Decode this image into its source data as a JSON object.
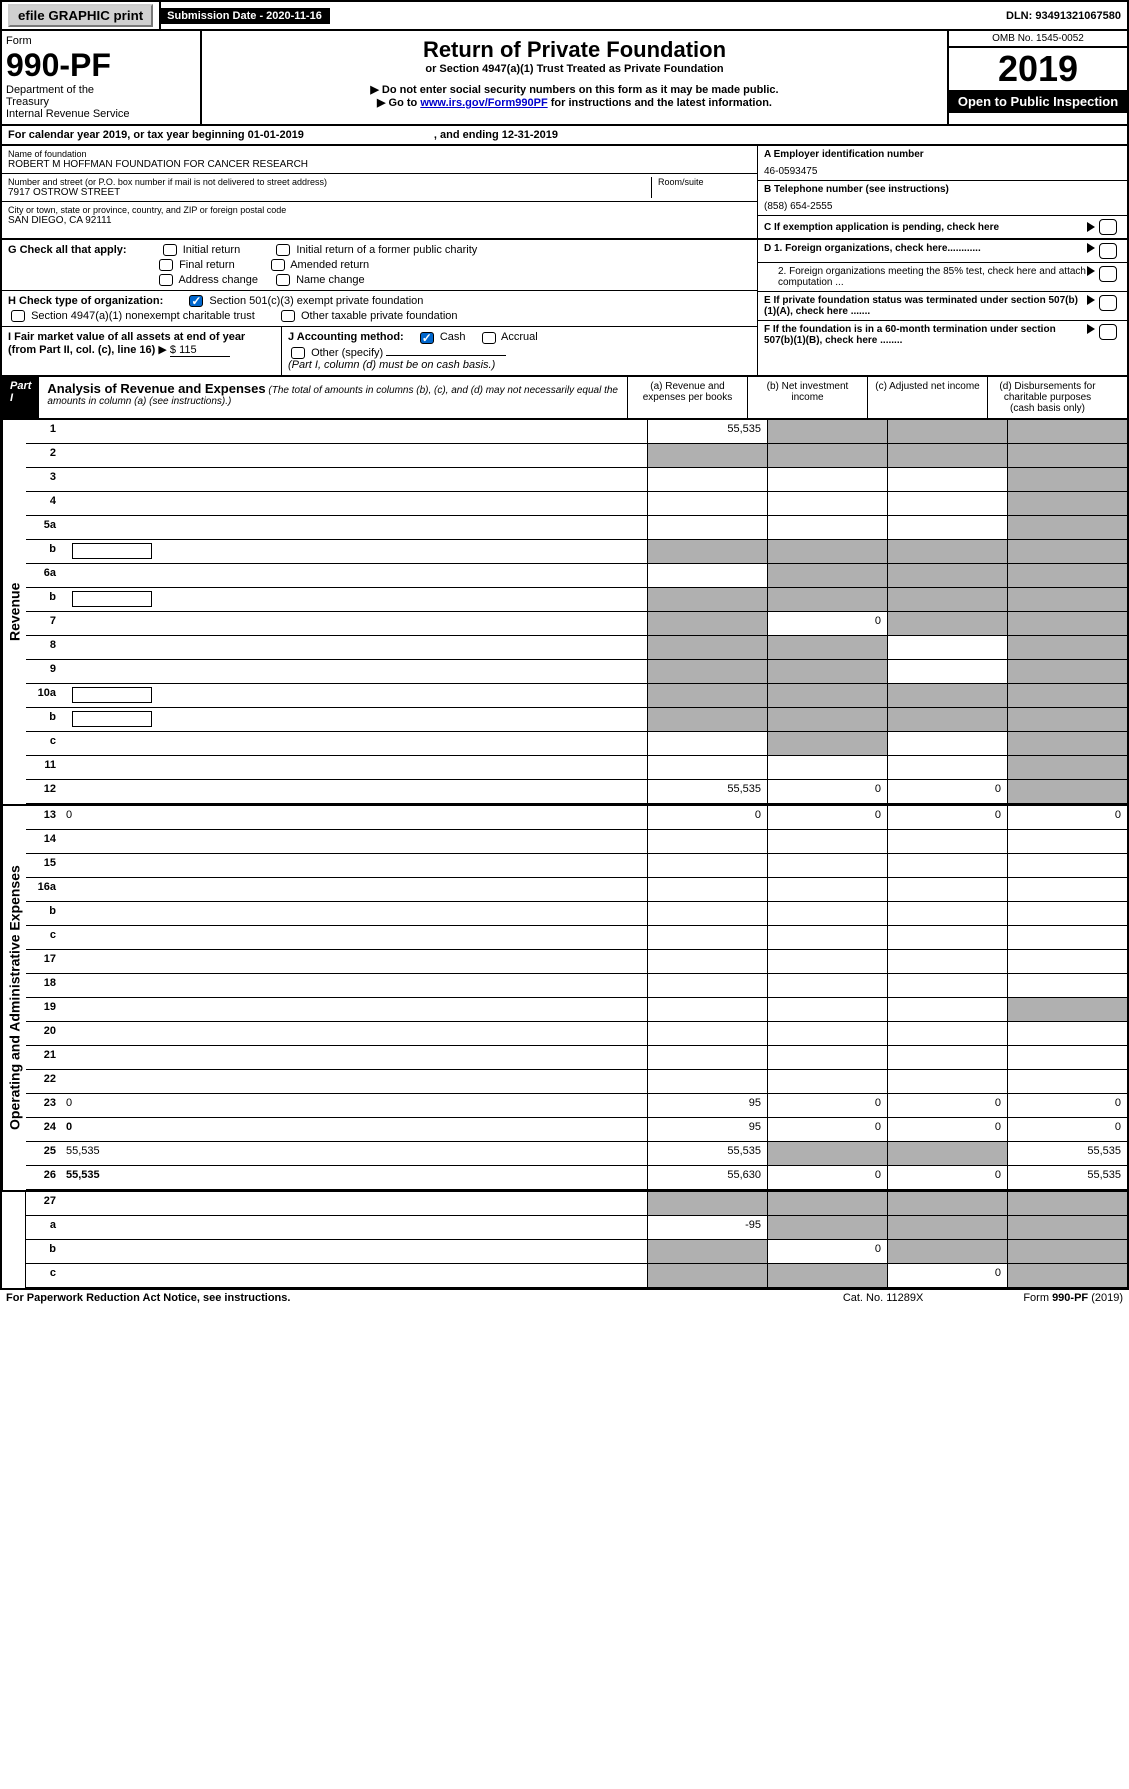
{
  "topbar": {
    "efile": "efile GRAPHIC print",
    "subdate_label": "Submission Date - 2020-11-16",
    "dln": "DLN: 93491321067580"
  },
  "header": {
    "form_label": "Form",
    "form_num": "990-PF",
    "dept1": "Department of the",
    "dept2": "Treasury",
    "dept3": "Internal Revenue Service",
    "title": "Return of Private Foundation",
    "subtitle": "or Section 4947(a)(1) Trust Treated as Private Foundation",
    "instr1": "▶ Do not enter social security numbers on this form as it may be made public.",
    "instr2_pre": "▶ Go to ",
    "instr2_link": "www.irs.gov/Form990PF",
    "instr2_post": " for instructions and the latest information.",
    "omb": "OMB No. 1545-0052",
    "year": "2019",
    "open": "Open to Public Inspection"
  },
  "calyear": {
    "text": "For calendar year 2019, or tax year beginning 01-01-2019",
    "ending": ", and ending 12-31-2019"
  },
  "info": {
    "name_label": "Name of foundation",
    "name": "ROBERT M HOFFMAN FOUNDATION FOR CANCER RESEARCH",
    "addr_label": "Number and street (or P.O. box number if mail is not delivered to street address)",
    "addr": "7917 OSTROW STREET",
    "room_label": "Room/suite",
    "city_label": "City or town, state or province, country, and ZIP or foreign postal code",
    "city": "SAN DIEGO, CA  92111",
    "a_label": "A Employer identification number",
    "a_val": "46-0593475",
    "b_label": "B Telephone number (see instructions)",
    "b_val": "(858) 654-2555",
    "c_label": "C If exemption application is pending, check here"
  },
  "g": {
    "label": "G Check all that apply:",
    "opts": [
      "Initial return",
      "Initial return of a former public charity",
      "Final return",
      "Amended return",
      "Address change",
      "Name change"
    ]
  },
  "h": {
    "label": "H Check type of organization:",
    "opt1": "Section 501(c)(3) exempt private foundation",
    "opt2": "Section 4947(a)(1) nonexempt charitable trust",
    "opt3": "Other taxable private foundation"
  },
  "i": {
    "label": "I Fair market value of all assets at end of year (from Part II, col. (c), line 16)",
    "arrow": "▶",
    "val": "$  115"
  },
  "j": {
    "label": "J Accounting method:",
    "cash": "Cash",
    "accrual": "Accrual",
    "other": "Other (specify)",
    "note": "(Part I, column (d) must be on cash basis.)"
  },
  "d": {
    "d1": "D 1. Foreign organizations, check here............",
    "d2": "2. Foreign organizations meeting the 85% test, check here and attach computation ...",
    "e": "E  If private foundation status was terminated under section 507(b)(1)(A), check here .......",
    "f": "F  If the foundation is in a 60-month termination under section 507(b)(1)(B), check here ........"
  },
  "part1": {
    "header": "Part I",
    "title": "Analysis of Revenue and Expenses",
    "note": "(The total of amounts in columns (b), (c), and (d) may not necessarily equal the amounts in column (a) (see instructions).)",
    "cols": {
      "a": "(a) Revenue and expenses per books",
      "b": "(b) Net investment income",
      "c": "(c) Adjusted net income",
      "d": "(d) Disbursements for charitable purposes (cash basis only)"
    }
  },
  "side_rev": "Revenue",
  "side_exp": "Operating and Administrative Expenses",
  "rows": [
    {
      "n": "1",
      "d": "",
      "a": "55,535",
      "b": "",
      "c": "",
      "shade": [
        "b",
        "c",
        "d"
      ]
    },
    {
      "n": "2",
      "d": "",
      "a": "",
      "b": "",
      "c": "",
      "shade": [
        "a",
        "b",
        "c",
        "d"
      ]
    },
    {
      "n": "3",
      "d": "",
      "a": "",
      "b": "",
      "c": "",
      "shade": [
        "d"
      ]
    },
    {
      "n": "4",
      "d": "",
      "a": "",
      "b": "",
      "c": "",
      "shade": [
        "d"
      ]
    },
    {
      "n": "5a",
      "d": "",
      "a": "",
      "b": "",
      "c": "",
      "shade": [
        "d"
      ]
    },
    {
      "n": "b",
      "d": "",
      "a": "",
      "b": "",
      "c": "",
      "shade": [
        "a",
        "b",
        "c",
        "d"
      ],
      "box": true
    },
    {
      "n": "6a",
      "d": "",
      "a": "",
      "b": "",
      "c": "",
      "shade": [
        "b",
        "c",
        "d"
      ]
    },
    {
      "n": "b",
      "d": "",
      "a": "",
      "b": "",
      "c": "",
      "shade": [
        "a",
        "b",
        "c",
        "d"
      ],
      "box": true
    },
    {
      "n": "7",
      "d": "",
      "a": "",
      "b": "0",
      "c": "",
      "shade": [
        "a",
        "c",
        "d"
      ]
    },
    {
      "n": "8",
      "d": "",
      "a": "",
      "b": "",
      "c": "",
      "shade": [
        "a",
        "b",
        "d"
      ]
    },
    {
      "n": "9",
      "d": "",
      "a": "",
      "b": "",
      "c": "",
      "shade": [
        "a",
        "b",
        "d"
      ]
    },
    {
      "n": "10a",
      "d": "",
      "a": "",
      "b": "",
      "c": "",
      "shade": [
        "a",
        "b",
        "c",
        "d"
      ],
      "box": true
    },
    {
      "n": "b",
      "d": "",
      "a": "",
      "b": "",
      "c": "",
      "shade": [
        "a",
        "b",
        "c",
        "d"
      ],
      "box": true
    },
    {
      "n": "c",
      "d": "",
      "a": "",
      "b": "",
      "c": "",
      "shade": [
        "b",
        "d"
      ]
    },
    {
      "n": "11",
      "d": "",
      "a": "",
      "b": "",
      "c": "",
      "shade": [
        "d"
      ]
    },
    {
      "n": "12",
      "d": "",
      "a": "55,535",
      "b": "0",
      "c": "0",
      "shade": [
        "d"
      ],
      "bold": true
    }
  ],
  "exp_rows": [
    {
      "n": "13",
      "d": "0",
      "a": "0",
      "b": "0",
      "c": "0"
    },
    {
      "n": "14",
      "d": "",
      "a": "",
      "b": "",
      "c": ""
    },
    {
      "n": "15",
      "d": "",
      "a": "",
      "b": "",
      "c": ""
    },
    {
      "n": "16a",
      "d": "",
      "a": "",
      "b": "",
      "c": ""
    },
    {
      "n": "b",
      "d": "",
      "a": "",
      "b": "",
      "c": ""
    },
    {
      "n": "c",
      "d": "",
      "a": "",
      "b": "",
      "c": ""
    },
    {
      "n": "17",
      "d": "",
      "a": "",
      "b": "",
      "c": ""
    },
    {
      "n": "18",
      "d": "",
      "a": "",
      "b": "",
      "c": ""
    },
    {
      "n": "19",
      "d": "",
      "a": "",
      "b": "",
      "c": "",
      "shade": [
        "d"
      ]
    },
    {
      "n": "20",
      "d": "",
      "a": "",
      "b": "",
      "c": ""
    },
    {
      "n": "21",
      "d": "",
      "a": "",
      "b": "",
      "c": ""
    },
    {
      "n": "22",
      "d": "",
      "a": "",
      "b": "",
      "c": ""
    },
    {
      "n": "23",
      "d": "0",
      "a": "95",
      "b": "0",
      "c": "0"
    },
    {
      "n": "24",
      "d": "0",
      "a": "95",
      "b": "0",
      "c": "0",
      "bold": true
    },
    {
      "n": "25",
      "d": "55,535",
      "a": "55,535",
      "b": "",
      "c": "",
      "shade": [
        "b",
        "c"
      ]
    },
    {
      "n": "26",
      "d": "55,535",
      "a": "55,630",
      "b": "0",
      "c": "0",
      "bold": true
    }
  ],
  "rows27": [
    {
      "n": "27",
      "d": "",
      "a": "",
      "b": "",
      "c": "",
      "shade": [
        "a",
        "b",
        "c",
        "d"
      ]
    },
    {
      "n": "a",
      "d": "",
      "a": "-95",
      "b": "",
      "c": "",
      "shade": [
        "b",
        "c",
        "d"
      ],
      "bold": true
    },
    {
      "n": "b",
      "d": "",
      "a": "",
      "b": "0",
      "c": "",
      "shade": [
        "a",
        "c",
        "d"
      ],
      "bold": true
    },
    {
      "n": "c",
      "d": "",
      "a": "",
      "b": "",
      "c": "0",
      "shade": [
        "a",
        "b",
        "d"
      ],
      "bold": true
    }
  ],
  "footer": {
    "left": "For Paperwork Reduction Act Notice, see instructions.",
    "mid": "Cat. No. 11289X",
    "right": "Form 990-PF (2019)"
  }
}
